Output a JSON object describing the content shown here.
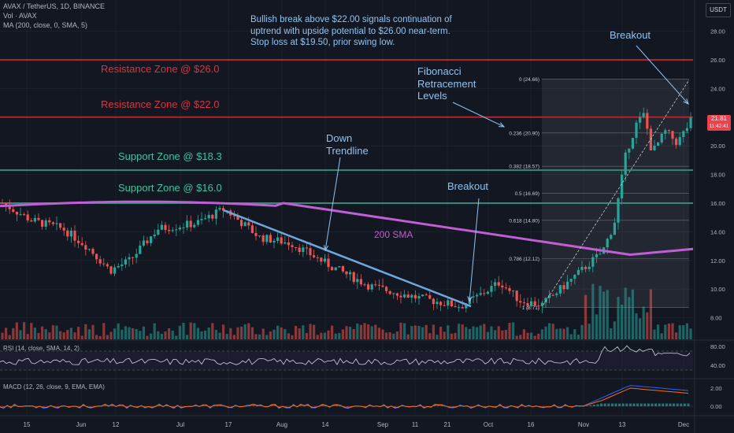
{
  "header": {
    "symbol_line": "AVAX / TetherUS, 1D, BINANCE",
    "vol_line": "Vol · AVAX",
    "ma_line": "MA (200, close, 0, SMA, 5)"
  },
  "currency_badge": "USDT",
  "note": {
    "line1": "Bullish break above $22.00 signals continuation of",
    "line2": "uptrend with upside potential to $26.00 near-term.",
    "line3": "Stop loss at $19.50, prior swing low."
  },
  "zones": {
    "res26": "Resistance Zone @ $26.0",
    "res22": "Resistance Zone @ $22.0",
    "sup18": "Support Zone @ $18.3",
    "sup16": "Support Zone @ $16.0"
  },
  "annotations": {
    "fib_title": [
      "Fibonacci",
      "Retracement",
      "Levels"
    ],
    "down_trendline": [
      "Down",
      "Trendline"
    ],
    "breakout_1": "Breakout",
    "breakout_2": "Breakout",
    "sma_label": "200 SMA"
  },
  "price_tag": {
    "price": "21.81",
    "countdown": "11:42:41"
  },
  "colors": {
    "background": "#131722",
    "up": "#26a69a",
    "down": "#ef5350",
    "resistance": "#b2222e",
    "support": "#2e8b75",
    "sma": "#c15ed6",
    "trendline": "#6aa8e0",
    "annotation_text": "#8fc3f0"
  },
  "chart_data": {
    "type": "candlestick",
    "symbol": "AVAX / TetherUS",
    "interval": "1D",
    "exchange": "BINANCE",
    "x_tick_labels": [
      "15",
      "Jun",
      "12",
      "Jul",
      "17",
      "Aug",
      "14",
      "Sep",
      "11",
      "21",
      "Oct",
      "16",
      "Nov",
      "13",
      "Dec"
    ],
    "price_axis_ticks": [
      8.0,
      10.0,
      12.0,
      14.0,
      16.0,
      18.0,
      20.0,
      22.0,
      24.0,
      26.0,
      28.0
    ],
    "ylim": [
      7.0,
      29.5
    ],
    "last_price": 21.81,
    "horizontal_levels": [
      {
        "label": "Resistance Zone @ $26.0",
        "value": 26.0,
        "kind": "resistance"
      },
      {
        "label": "Resistance Zone @ $22.0",
        "value": 22.0,
        "kind": "resistance"
      },
      {
        "label": "Support Zone @ $18.3",
        "value": 18.3,
        "kind": "support"
      },
      {
        "label": "Support Zone @ $16.0",
        "value": 16.0,
        "kind": "support"
      }
    ],
    "fibonacci_levels": [
      {
        "ratio": "0",
        "price": 24.66
      },
      {
        "ratio": "0.236",
        "price": 20.9
      },
      {
        "ratio": "0.382",
        "price": 18.57
      },
      {
        "ratio": "0.5",
        "price": 16.69
      },
      {
        "ratio": "0.618",
        "price": 14.8
      },
      {
        "ratio": "0.786",
        "price": 12.12
      },
      {
        "ratio": "1",
        "price": 8.71
      }
    ],
    "sma200": {
      "name": "200 SMA",
      "start": 15.8,
      "peak": 16.1,
      "end": 12.8
    },
    "down_trendline": {
      "from": 15.5,
      "to": 8.8
    },
    "rsi": {
      "title": "RSI (14, close, SMA, 14, 2)",
      "ticks": [
        40.0,
        80.0
      ],
      "levels": [
        30,
        70
      ]
    },
    "macd": {
      "title": "MACD (12, 26, close, 9, EMA, EMA)",
      "ticks": [
        0.0,
        2.0
      ]
    }
  }
}
